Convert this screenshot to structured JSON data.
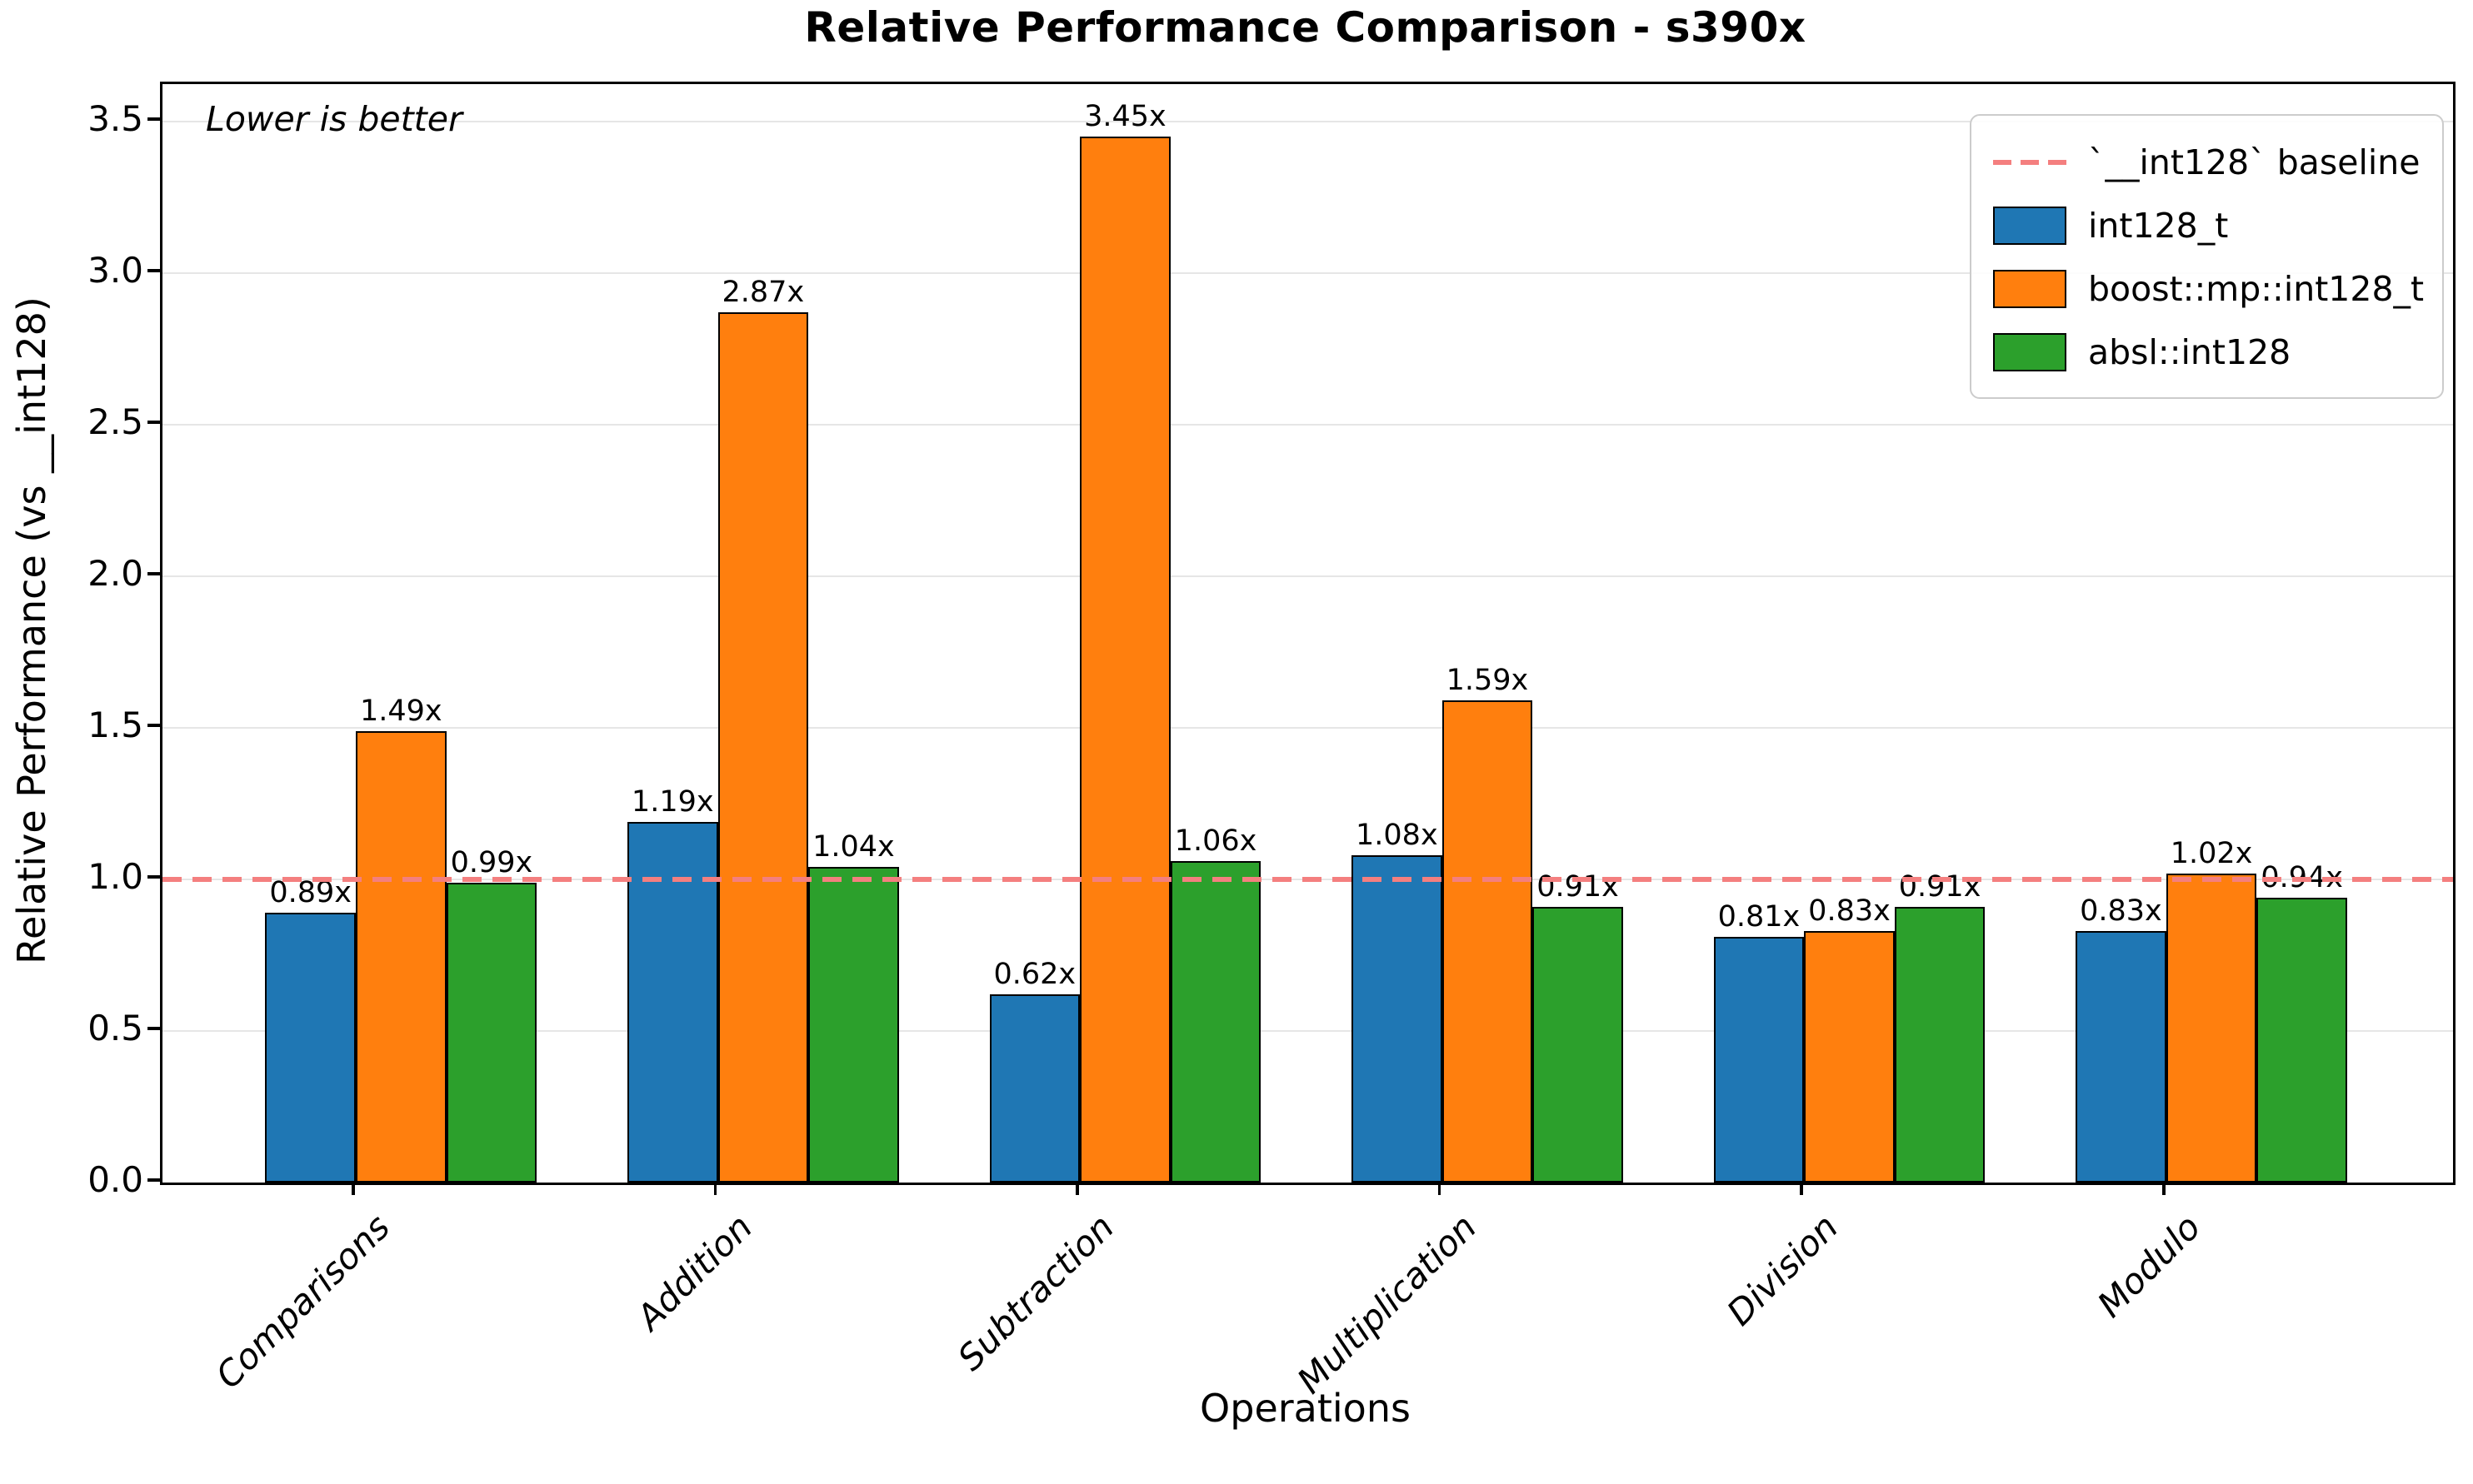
{
  "title": "Relative Performance Comparison - s390x",
  "annotation": "Lower is better",
  "axes": {
    "x_label": "Operations",
    "y_label": "Relative Performance (vs __int128)",
    "y_ticks": [
      {
        "label": "0.0",
        "value": 0.0
      },
      {
        "label": "0.5",
        "value": 0.5
      },
      {
        "label": "1.0",
        "value": 1.0
      },
      {
        "label": "1.5",
        "value": 1.5
      },
      {
        "label": "2.0",
        "value": 2.0
      },
      {
        "label": "2.5",
        "value": 2.5
      },
      {
        "label": "3.0",
        "value": 3.0
      },
      {
        "label": "3.5",
        "value": 3.5
      }
    ]
  },
  "legend": {
    "entries": [
      {
        "type": "line",
        "color": "#f47f7f",
        "label": "`__int128` baseline"
      },
      {
        "type": "patch",
        "color": "#1f77b4",
        "label": "int128_t"
      },
      {
        "type": "patch",
        "color": "#ff7f0e",
        "label": "boost::mp::int128_t"
      },
      {
        "type": "patch",
        "color": "#2ca02c",
        "label": "absl::int128"
      }
    ]
  },
  "chart_data": {
    "type": "bar",
    "title": "Relative Performance Comparison - s390x",
    "xlabel": "Operations",
    "ylabel": "Relative Performance (vs __int128)",
    "annotation": "Lower is better",
    "categories": [
      "Comparisons",
      "Addition",
      "Subtraction",
      "Multiplication",
      "Division",
      "Modulo"
    ],
    "series": [
      {
        "name": "int128_t",
        "color": "#1f77b4",
        "values": [
          0.89,
          1.19,
          0.62,
          1.08,
          0.81,
          0.83
        ],
        "labels": [
          "0.89x",
          "1.19x",
          "0.62x",
          "1.08x",
          "0.81x",
          "0.83x"
        ]
      },
      {
        "name": "boost::mp::int128_t",
        "color": "#ff7f0e",
        "values": [
          1.49,
          2.87,
          3.45,
          1.59,
          0.83,
          1.02
        ],
        "labels": [
          "1.49x",
          "2.87x",
          "3.45x",
          "1.59x",
          "0.83x",
          "1.02x"
        ]
      },
      {
        "name": "absl::int128",
        "color": "#2ca02c",
        "values": [
          0.99,
          1.04,
          1.06,
          0.91,
          0.91,
          0.94
        ],
        "labels": [
          "0.99x",
          "1.04x",
          "1.06x",
          "0.91x",
          "0.91x",
          "0.94x"
        ]
      }
    ],
    "baseline": {
      "value": 1.0,
      "label": "`__int128` baseline",
      "color": "#f47f7f",
      "style": "dashed"
    },
    "ylim": [
      0,
      3.62
    ],
    "ytick_step": 0.5,
    "grid": true,
    "legend_position": "upper right",
    "note": "Lower is better"
  }
}
